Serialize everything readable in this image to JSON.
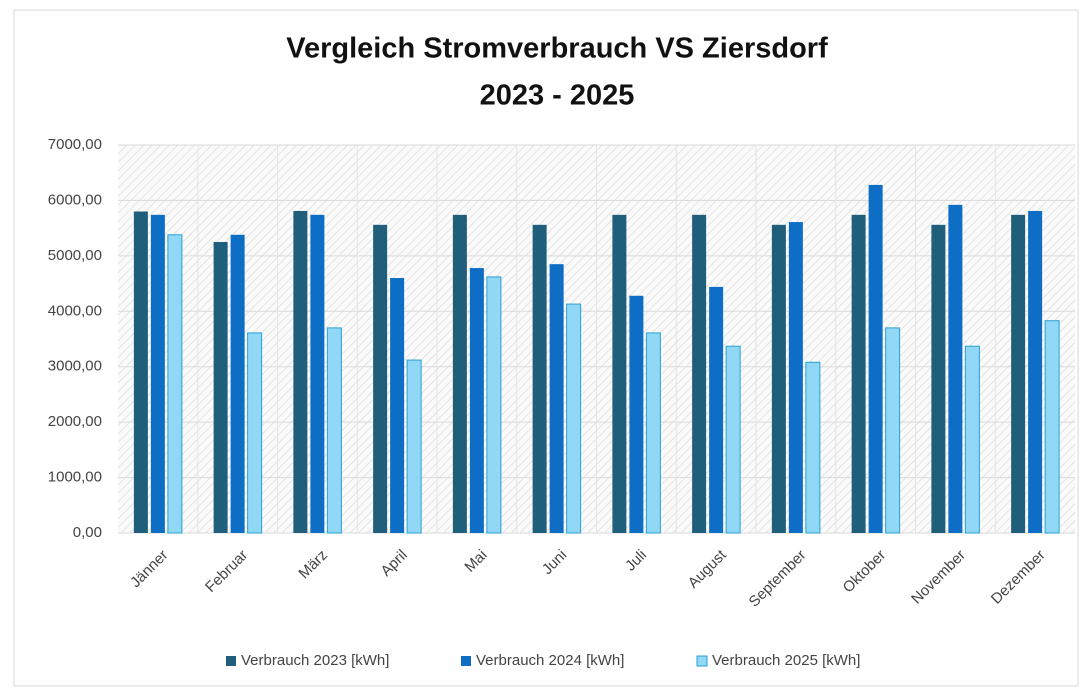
{
  "chart_data": {
    "type": "bar",
    "title": [
      "Vergleich Stromverbrauch VS Ziersdorf",
      "2023 - 2025"
    ],
    "categories": [
      "Jänner",
      "Februar",
      "März",
      "April",
      "Mai",
      "Juni",
      "Juli",
      "August",
      "September",
      "Oktober",
      "November",
      "Dezember"
    ],
    "series": [
      {
        "name": "Verbrauch 2023 [kWh]",
        "color": "#1f5f7c",
        "values": [
          5800,
          5250,
          5810,
          5560,
          5740,
          5560,
          5740,
          5740,
          5560,
          5740,
          5560,
          5740
        ]
      },
      {
        "name": "Verbrauch 2024 [kWh]",
        "color": "#0e6dc4",
        "values": [
          5740,
          5380,
          5740,
          4600,
          4780,
          4850,
          4280,
          4440,
          5610,
          6280,
          5920,
          5810
        ]
      },
      {
        "name": "Verbrauch 2025 [kWh]",
        "color": "#90d8f5",
        "values": [
          5380,
          3610,
          3700,
          3120,
          4620,
          4130,
          3610,
          3370,
          3080,
          3700,
          3370,
          3830
        ]
      }
    ],
    "ylim": [
      0,
      7000
    ],
    "yticks": [
      {
        "value": 0,
        "label": "0,00"
      },
      {
        "value": 1000,
        "label": "1000,00"
      },
      {
        "value": 2000,
        "label": "2000,00"
      },
      {
        "value": 3000,
        "label": "3000,00"
      },
      {
        "value": 4000,
        "label": "4000,00"
      },
      {
        "value": 5000,
        "label": "5000,00"
      },
      {
        "value": 6000,
        "label": "6000,00"
      },
      {
        "value": 7000,
        "label": "7000,00"
      }
    ],
    "grid": true,
    "legend": "bottom"
  }
}
